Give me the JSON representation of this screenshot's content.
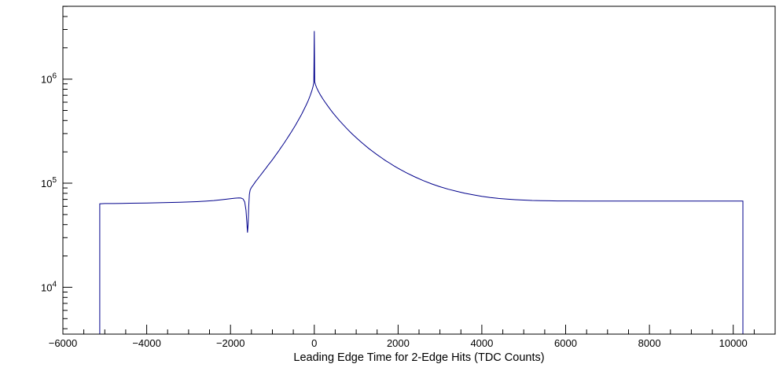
{
  "chart_data": {
    "type": "line",
    "title": "",
    "xlabel": "Leading Edge Time for 2-Edge Hits (TDC Counts)",
    "ylabel": "",
    "xlim": [
      -6000,
      11000
    ],
    "ylog10_lim": [
      3.55,
      6.7
    ],
    "x_major_ticks": [
      -6000,
      -4000,
      -2000,
      0,
      2000,
      4000,
      6000,
      8000,
      10000
    ],
    "x_tick_labels": [
      "−6000",
      "−4000",
      "−2000",
      "0",
      "2000",
      "4000",
      "6000",
      "8000",
      "10000"
    ],
    "x_minor_step": 500,
    "y_decade_exponents": [
      4,
      5,
      6
    ],
    "grid": false,
    "legend": null,
    "line_color": "#00008b",
    "frame_color": "#000000",
    "background": "#ffffff",
    "points": [
      [
        -5120,
        3548
      ],
      [
        -5120,
        63500
      ],
      [
        -5000,
        63800
      ],
      [
        -4800,
        63800
      ],
      [
        -4600,
        64000
      ],
      [
        -4400,
        64200
      ],
      [
        -4200,
        64300
      ],
      [
        -4000,
        64500
      ],
      [
        -3800,
        64800
      ],
      [
        -3600,
        65000
      ],
      [
        -3400,
        65300
      ],
      [
        -3200,
        65600
      ],
      [
        -3000,
        66000
      ],
      [
        -2800,
        66500
      ],
      [
        -2600,
        67200
      ],
      [
        -2400,
        68200
      ],
      [
        -2200,
        69500
      ],
      [
        -2000,
        71000
      ],
      [
        -1900,
        71800
      ],
      [
        -1800,
        72200
      ],
      [
        -1750,
        72000
      ],
      [
        -1700,
        70500
      ],
      [
        -1660,
        66000
      ],
      [
        -1630,
        55000
      ],
      [
        -1610,
        42000
      ],
      [
        -1595,
        33500
      ],
      [
        -1580,
        40000
      ],
      [
        -1565,
        60000
      ],
      [
        -1550,
        78000
      ],
      [
        -1530,
        86000
      ],
      [
        -1500,
        91000
      ],
      [
        -1450,
        97000
      ],
      [
        -1400,
        104000
      ],
      [
        -1350,
        110000
      ],
      [
        -1300,
        117000
      ],
      [
        -1250,
        124000
      ],
      [
        -1200,
        132000
      ],
      [
        -1150,
        140000
      ],
      [
        -1100,
        149000
      ],
      [
        -1050,
        158000
      ],
      [
        -1000,
        168000
      ],
      [
        -950,
        179000
      ],
      [
        -900,
        191000
      ],
      [
        -850,
        204000
      ],
      [
        -800,
        218000
      ],
      [
        -750,
        233000
      ],
      [
        -700,
        250000
      ],
      [
        -650,
        268000
      ],
      [
        -600,
        288000
      ],
      [
        -550,
        310000
      ],
      [
        -500,
        334000
      ],
      [
        -450,
        360000
      ],
      [
        -400,
        390000
      ],
      [
        -350,
        424000
      ],
      [
        -300,
        462000
      ],
      [
        -250,
        505000
      ],
      [
        -200,
        556000
      ],
      [
        -150,
        615000
      ],
      [
        -100,
        690000
      ],
      [
        -60,
        770000
      ],
      [
        -30,
        850000
      ],
      [
        -10,
        930000
      ],
      [
        0,
        2900000
      ],
      [
        10,
        940000
      ],
      [
        30,
        880000
      ],
      [
        60,
        820000
      ],
      [
        100,
        760000
      ],
      [
        150,
        700000
      ],
      [
        200,
        650000
      ],
      [
        250,
        607000
      ],
      [
        300,
        568000
      ],
      [
        350,
        533000
      ],
      [
        400,
        501000
      ],
      [
        450,
        472000
      ],
      [
        500,
        446000
      ],
      [
        600,
        400000
      ],
      [
        700,
        361000
      ],
      [
        800,
        328000
      ],
      [
        900,
        299000
      ],
      [
        1000,
        274000
      ],
      [
        1100,
        252000
      ],
      [
        1200,
        233000
      ],
      [
        1300,
        216000
      ],
      [
        1400,
        201000
      ],
      [
        1500,
        188000
      ],
      [
        1600,
        176000
      ],
      [
        1700,
        165000
      ],
      [
        1800,
        156000
      ],
      [
        1900,
        147000
      ],
      [
        2000,
        139000
      ],
      [
        2200,
        126000
      ],
      [
        2400,
        115000
      ],
      [
        2600,
        106000
      ],
      [
        2800,
        98500
      ],
      [
        3000,
        92500
      ],
      [
        3200,
        87500
      ],
      [
        3400,
        83500
      ],
      [
        3600,
        80000
      ],
      [
        3800,
        77200
      ],
      [
        4000,
        74800
      ],
      [
        4200,
        72900
      ],
      [
        4400,
        71400
      ],
      [
        4600,
        70300
      ],
      [
        4800,
        69400
      ],
      [
        5000,
        68800
      ],
      [
        5200,
        68300
      ],
      [
        5400,
        68000
      ],
      [
        5600,
        67800
      ],
      [
        5800,
        67600
      ],
      [
        6000,
        67500
      ],
      [
        6500,
        67400
      ],
      [
        7000,
        67400
      ],
      [
        7500,
        67400
      ],
      [
        8000,
        67400
      ],
      [
        8500,
        67400
      ],
      [
        9000,
        67400
      ],
      [
        9500,
        67400
      ],
      [
        10000,
        67400
      ],
      [
        10230,
        67400
      ],
      [
        10230,
        3548
      ]
    ]
  }
}
